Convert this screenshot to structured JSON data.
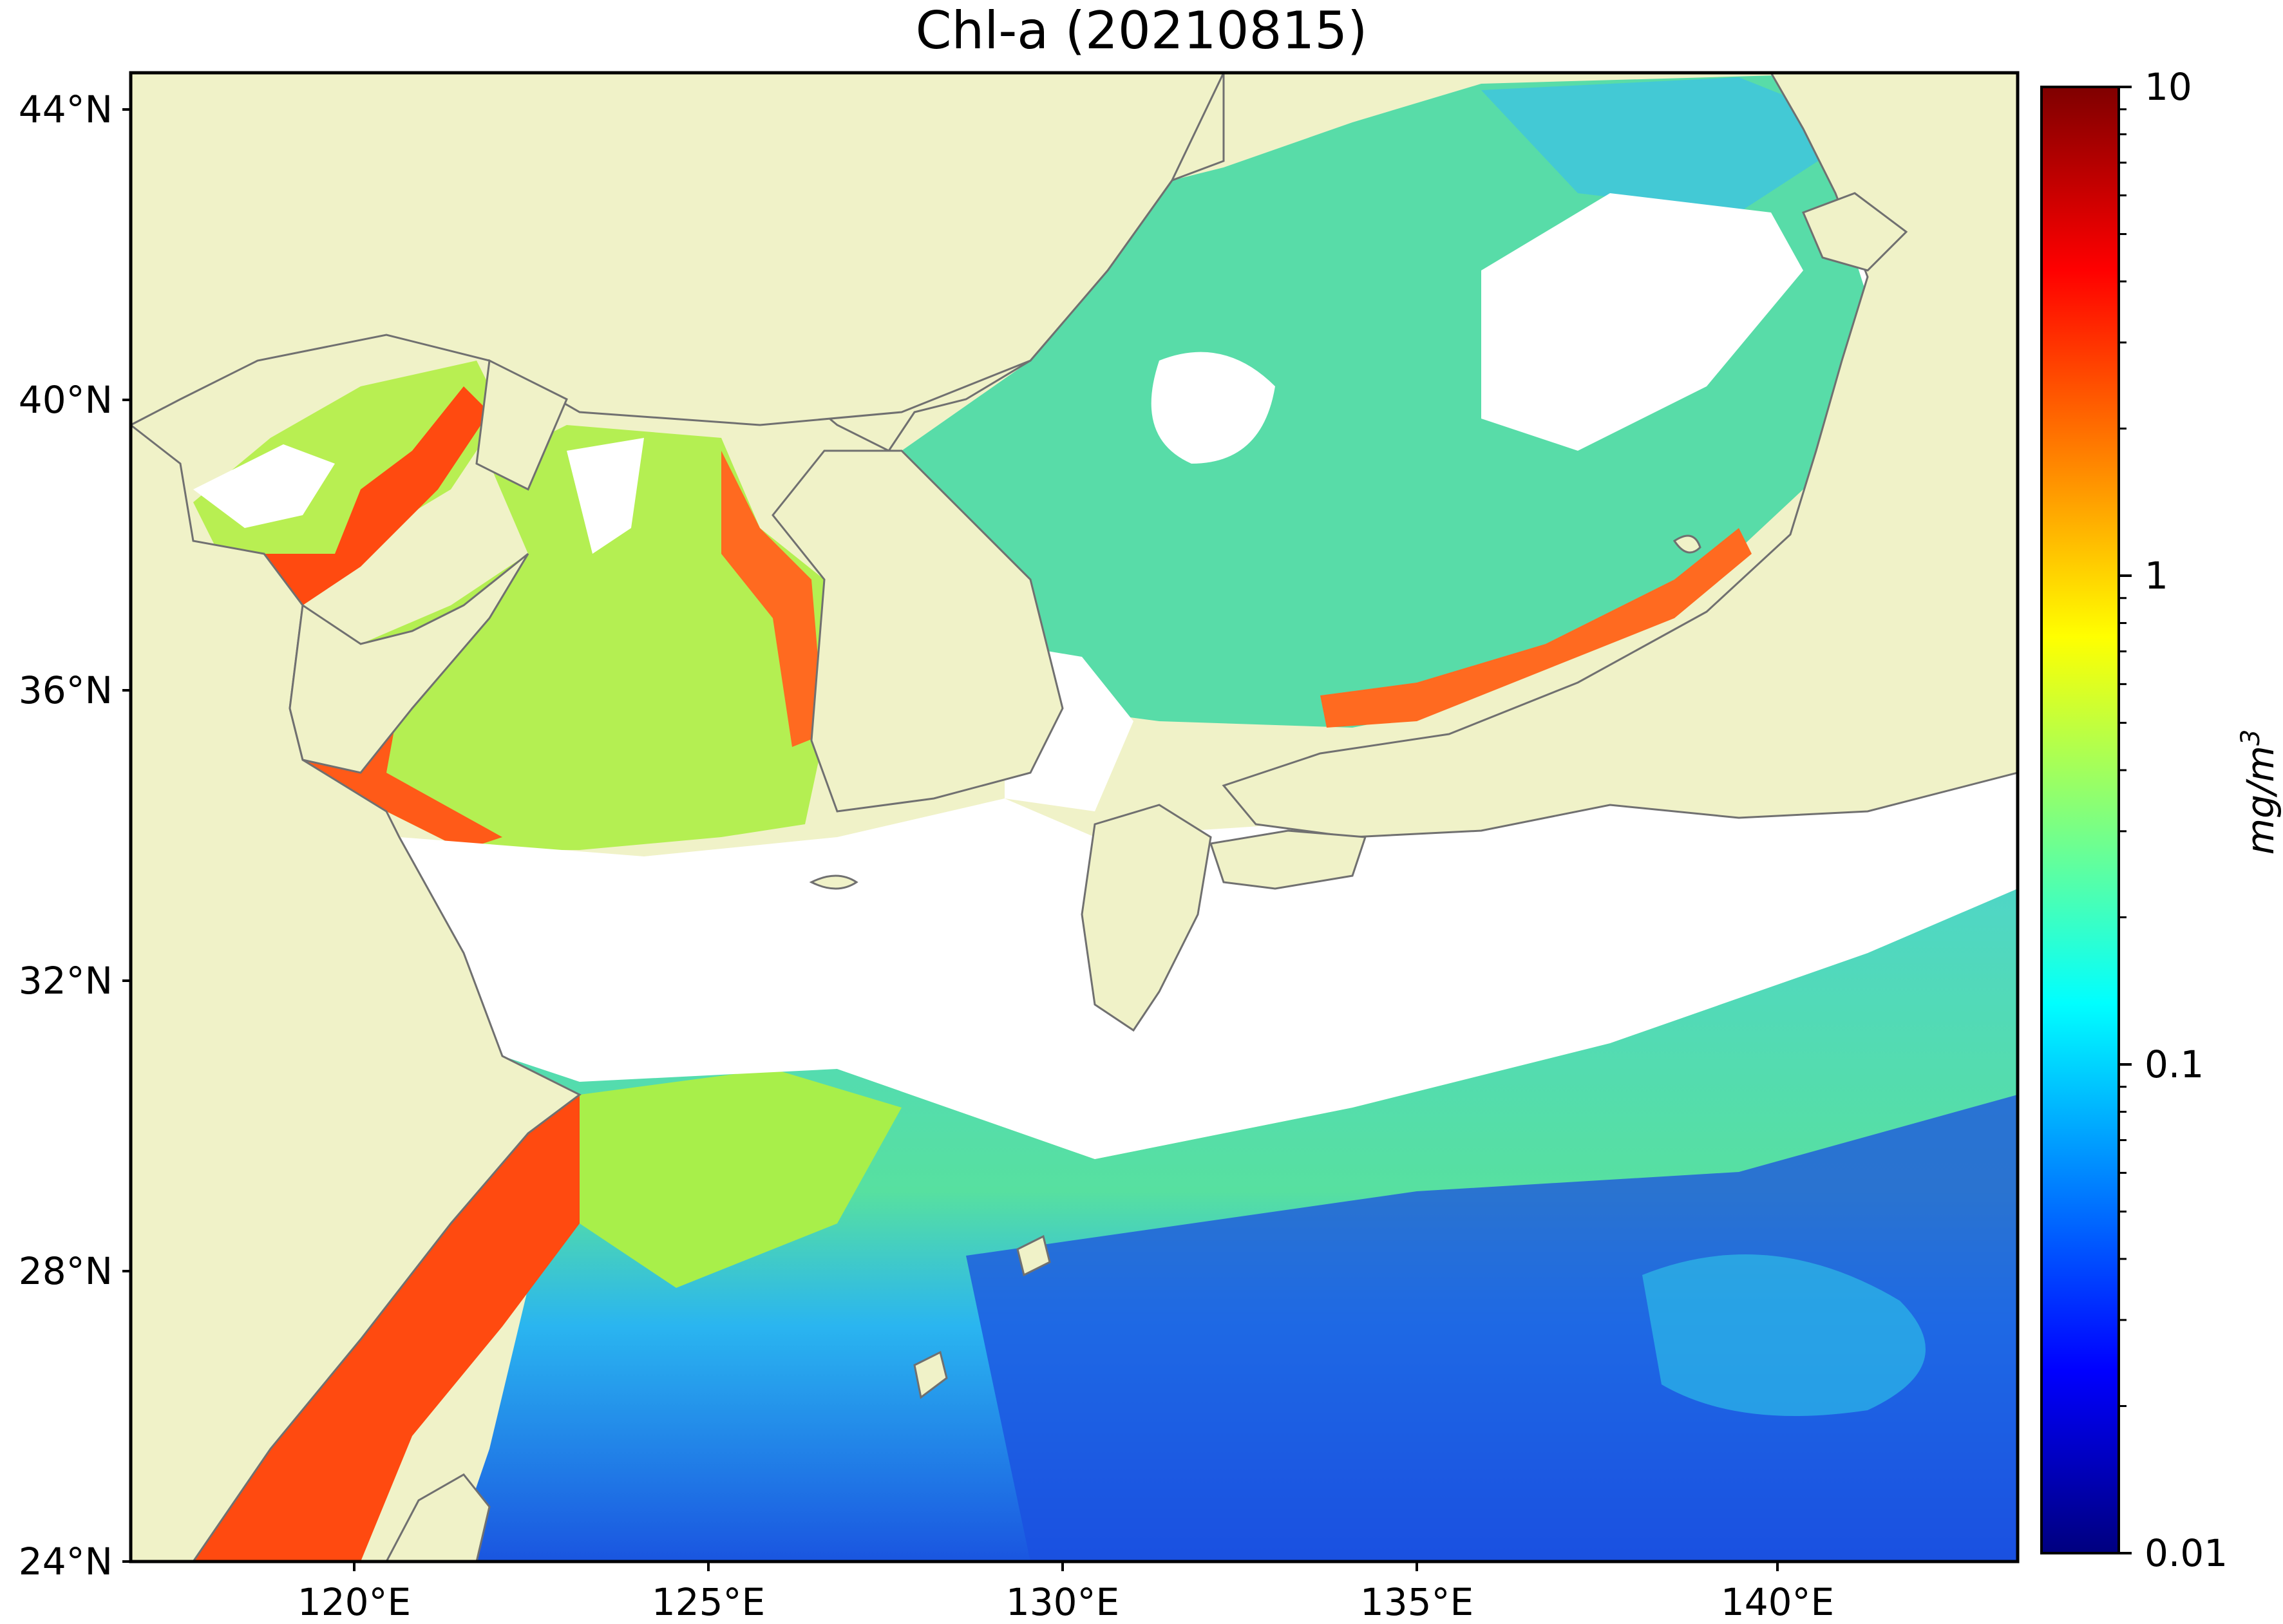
{
  "title": "Chl-a (20210815)",
  "lat_ticks": [
    "44°N",
    "40°N",
    "36°N",
    "32°N",
    "28°N",
    "24°N"
  ],
  "lon_ticks": [
    "120°E",
    "125°E",
    "130°E",
    "135°E",
    "140°E"
  ],
  "colorbar": {
    "scale": "log",
    "min": 0.01,
    "max": 10,
    "tick_labels": [
      "10",
      "1",
      "0.1",
      "0.01"
    ],
    "unit_base": "mg/m",
    "unit_exp": "3",
    "colormap": [
      "#00007f",
      "#0000ff",
      "#007fff",
      "#00ffff",
      "#7fff7f",
      "#ffff00",
      "#ff7f00",
      "#ff0000",
      "#7f0000"
    ]
  },
  "map": {
    "lat_range": [
      24,
      44.5
    ],
    "lon_range": [
      116.5,
      143
    ],
    "land_color": "#f0f2c8",
    "no_data_color": "#ffffff",
    "coastline_color": "#707070"
  }
}
